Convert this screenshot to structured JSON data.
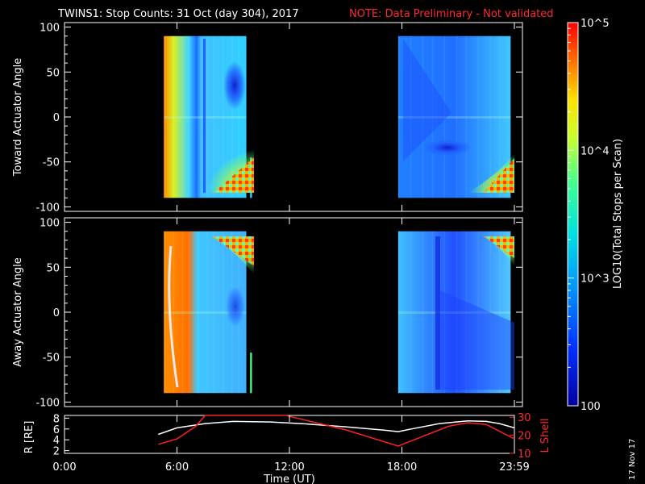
{
  "title": {
    "main": "TWINS1: Stop Counts: 31 Oct (day 304), 2017",
    "note": "NOTE: Data Preliminary - Not validated"
  },
  "date_stamp": "17 Nov 17",
  "colorbar": {
    "label": "LOG10(Total Stops per Scan)",
    "ticks": [
      "10^5",
      "10^4",
      "10^3",
      "100"
    ]
  },
  "colors": {
    "background": "#000000",
    "axes": "#ffffff",
    "note": "#ff2a2a",
    "lshell": "#ff2020",
    "radius": "#ffffff"
  },
  "chart_data": [
    {
      "type": "heatmap",
      "panel": "toward",
      "ylabel": "Toward Actuator Angle",
      "xlim": [
        0,
        24
      ],
      "ylim": [
        -105,
        105
      ],
      "yticks": [
        100,
        50,
        0,
        -50,
        -100
      ],
      "color_scale": "log",
      "zlim": [
        100,
        100000
      ],
      "data_blocks": [
        {
          "t_start": 5.3,
          "t_end": 9.7,
          "angle_min": -90,
          "angle_max": 90
        },
        {
          "t_start": 9.9,
          "t_end": 10.0,
          "angle_min": -90,
          "angle_max": -45
        },
        {
          "t_start": 17.8,
          "t_end": 23.8,
          "angle_min": -90,
          "angle_max": 90
        }
      ]
    },
    {
      "type": "heatmap",
      "panel": "away",
      "ylabel": "Away Actuator Angle",
      "xlim": [
        0,
        24
      ],
      "ylim": [
        -105,
        105
      ],
      "yticks": [
        100,
        50,
        0,
        -50,
        -100
      ],
      "color_scale": "log",
      "zlim": [
        100,
        100000
      ],
      "data_blocks": [
        {
          "t_start": 5.3,
          "t_end": 9.7,
          "angle_min": -90,
          "angle_max": 90
        },
        {
          "t_start": 9.9,
          "t_end": 10.0,
          "angle_min": -90,
          "angle_max": -45
        },
        {
          "t_start": 17.8,
          "t_end": 23.8,
          "angle_min": -90,
          "angle_max": 90
        }
      ]
    },
    {
      "type": "line",
      "panel": "orbit",
      "xlabel": "Time (UT)",
      "xticks": [
        "0:00",
        "6:00",
        "12:00",
        "18:00",
        "23:59"
      ],
      "xlim": [
        0,
        24
      ],
      "ylabel_left": "R [RE]",
      "ylim_left": [
        1.5,
        8.5
      ],
      "yticks_left": [
        2,
        4,
        6,
        8
      ],
      "ylabel_right": "L Shell",
      "ylim_right": [
        10,
        31
      ],
      "yticks_right": [
        10,
        20,
        30
      ],
      "series": [
        {
          "axis": "left",
          "color": "#ffffff",
          "x": [
            5.0,
            6.0,
            7.5,
            9.0,
            11.0,
            13.0,
            15.0,
            17.0,
            17.8,
            18.5,
            20.0,
            21.5,
            22.5,
            23.2,
            24.0
          ],
          "y": [
            5.0,
            6.2,
            7.0,
            7.4,
            7.3,
            6.9,
            6.4,
            5.8,
            5.5,
            6.0,
            7.0,
            7.5,
            7.4,
            7.0,
            6.2
          ]
        },
        {
          "axis": "right",
          "color": "#ff2020",
          "x": [
            5.0,
            6.0,
            7.0,
            7.5,
            11.8,
            12.2,
            15.0,
            17.8,
            19.0,
            20.5,
            21.5,
            22.5,
            24.0
          ],
          "y": [
            15.0,
            18.0,
            25.0,
            31.0,
            31.0,
            30.0,
            23.0,
            14.0,
            19.0,
            25.0,
            27.0,
            26.0,
            18.0
          ]
        }
      ]
    }
  ]
}
